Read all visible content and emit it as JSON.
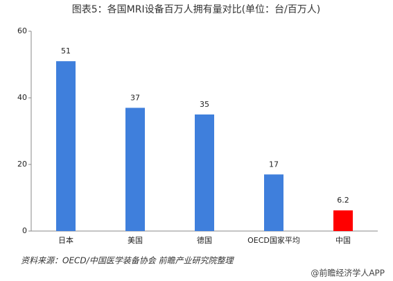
{
  "chart_data": {
    "type": "bar",
    "title": "图表5：各国MRI设备百万人拥有量对比(单位：台/百万人)",
    "categories": [
      "日本",
      "美国",
      "德国",
      "OECD国家平均",
      "中国"
    ],
    "values": [
      51,
      37,
      35,
      17,
      6.2
    ],
    "colors": [
      "#3f7fdc",
      "#3f7fdc",
      "#3f7fdc",
      "#3f7fdc",
      "#ff0000"
    ],
    "ylim": [
      0,
      60
    ],
    "yticks": [
      0,
      20,
      40,
      60
    ],
    "grid": false,
    "source": "资料来源：OECD/中国医学装备协会 前瞻产业研究院整理",
    "watermark": "@前瞻经济学人APP"
  }
}
